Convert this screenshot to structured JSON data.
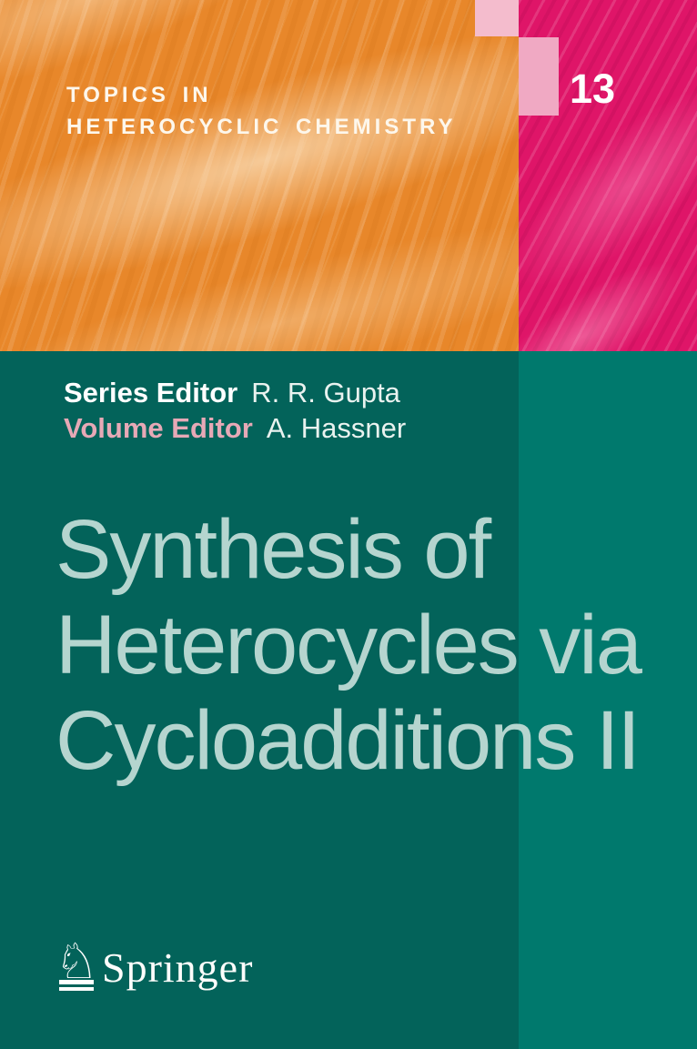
{
  "series_banner": {
    "line1": "TOPICS IN",
    "line2": "HETEROCYCLIC CHEMISTRY"
  },
  "volume_badge": {
    "number": "13"
  },
  "editors": {
    "series": {
      "label": "Series Editor",
      "name": "R. R. Gupta"
    },
    "volume": {
      "label": "Volume Editor",
      "name": "A. Hassner"
    }
  },
  "title": {
    "line1": "Synthesis of",
    "line2": "Heterocycles via",
    "line3": "Cycloadditions II"
  },
  "publisher": {
    "name": "Springer",
    "logo_glyph": "♘"
  },
  "colors": {
    "orange": "#e8872a",
    "magenta": "#df1568",
    "teal_dark": "#03635a",
    "teal_light": "#00796d",
    "pink_square": "#f0a9c3",
    "title_text": "#b5d5cf",
    "editor_pink": "#e6a9b6",
    "white": "#ffffff"
  }
}
